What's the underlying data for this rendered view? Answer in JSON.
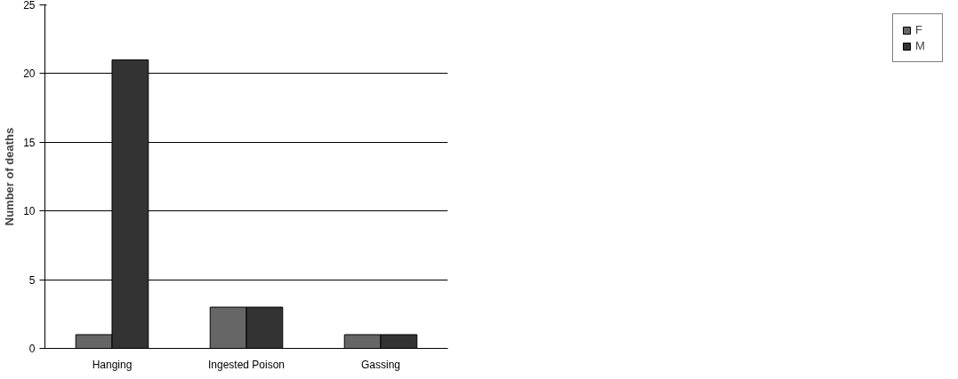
{
  "chart_data": {
    "type": "bar",
    "ylabel": "Number of deaths",
    "categories": [
      "Hanging",
      "Ingested Poison",
      "Gassing"
    ],
    "series": [
      {
        "name": "F",
        "color": "#666666",
        "values": [
          1,
          3,
          1
        ]
      },
      {
        "name": "M",
        "color": "#333333",
        "values": [
          21,
          3,
          1
        ]
      }
    ],
    "ylim": [
      0,
      25
    ],
    "yticks": [
      0,
      5,
      10,
      15,
      20,
      25
    ],
    "grid": "y",
    "legend": "right"
  }
}
